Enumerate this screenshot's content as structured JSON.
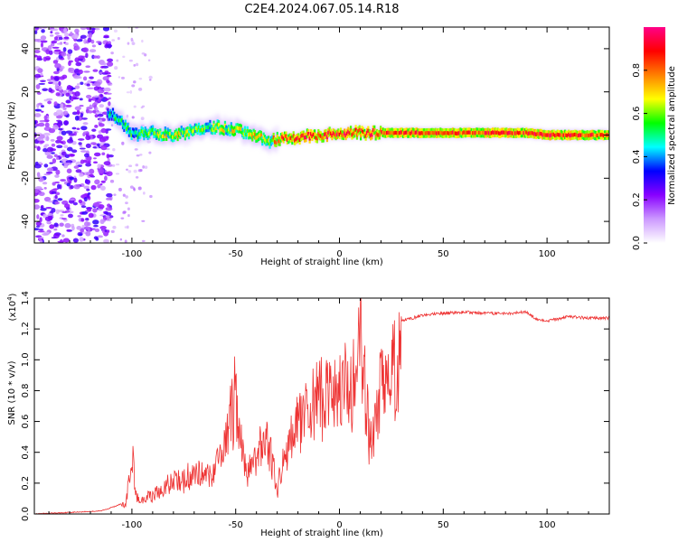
{
  "title": "C2E4.2024.067.05.14.R18",
  "chart_data": [
    {
      "type": "heatmap",
      "xlabel": "Height of straight line (km)",
      "ylabel": "Frequency (Hz)",
      "xlim": [
        -147,
        130
      ],
      "ylim": [
        -50,
        50
      ],
      "xticks": [
        -100,
        -50,
        0,
        50,
        100
      ],
      "yticks": [
        -40,
        -20,
        0,
        20,
        40
      ],
      "colorbar": {
        "label": "Normalized spectral amplitude",
        "range": [
          0.0,
          1.0
        ],
        "ticks": [
          "0.0",
          "0.2",
          "0.4",
          "0.6",
          "0.8"
        ],
        "colors": [
          "#ffffff",
          "#cc99ff",
          "#8800ff",
          "#0000ff",
          "#00ffff",
          "#00ff00",
          "#ffff00",
          "#ff8000",
          "#ff0000",
          "#ff0088"
        ]
      },
      "ridge": {
        "x": [
          -147,
          -110,
          -100,
          -90,
          -80,
          -70,
          -60,
          -50,
          -40,
          -35,
          -30,
          -20,
          -10,
          0,
          10,
          30,
          50,
          70,
          90,
          100,
          130
        ],
        "frequency": [
          0,
          10,
          0,
          1,
          0,
          2,
          4,
          2,
          0,
          -3,
          -2,
          -1,
          0,
          1,
          1,
          1,
          1,
          1,
          1,
          0,
          0
        ],
        "amplitude": [
          0.3,
          0.5,
          0.5,
          0.6,
          0.65,
          0.6,
          0.6,
          0.65,
          0.7,
          0.6,
          0.8,
          0.85,
          0.85,
          0.9,
          0.85,
          0.85,
          0.85,
          0.85,
          0.85,
          0.9,
          0.8
        ]
      }
    },
    {
      "type": "line",
      "xlabel": "Height of straight line (km)",
      "ylabel": "SNR (10 * v/v)",
      "multiplier_label": "(x10",
      "multiplier_exp": "4",
      "multiplier_close": ")",
      "xlim": [
        -147,
        130
      ],
      "ylim": [
        0,
        1.4
      ],
      "xticks": [
        -100,
        -50,
        0,
        50,
        100
      ],
      "yticks": [
        "0.0",
        "0.2",
        "0.4",
        "0.6",
        "0.8",
        "1.0",
        "1.2",
        "1.4"
      ],
      "color": "#ee3333",
      "series": [
        {
          "x": [
            -147,
            -130,
            -115,
            -108,
            -103,
            -100,
            -97,
            -90,
            -80,
            -70,
            -60,
            -55,
            -50,
            -45,
            -40,
            -35,
            -30,
            -25,
            -20,
            -15,
            -10,
            -5,
            0,
            5,
            10,
            15,
            20,
            25,
            30,
            40,
            50,
            60,
            70,
            80,
            90,
            95,
            100,
            110,
            120,
            130
          ],
          "values": [
            0.0,
            0.01,
            0.02,
            0.05,
            0.08,
            0.45,
            0.1,
            0.15,
            0.25,
            0.3,
            0.35,
            0.55,
            0.9,
            0.3,
            0.45,
            0.6,
            0.2,
            0.55,
            0.75,
            0.85,
            0.9,
            0.95,
            1.05,
            1.0,
            1.4,
            0.55,
            1.05,
            1.15,
            1.25,
            1.29,
            1.3,
            1.31,
            1.3,
            1.3,
            1.31,
            1.26,
            1.25,
            1.28,
            1.27,
            1.27
          ]
        }
      ]
    }
  ]
}
